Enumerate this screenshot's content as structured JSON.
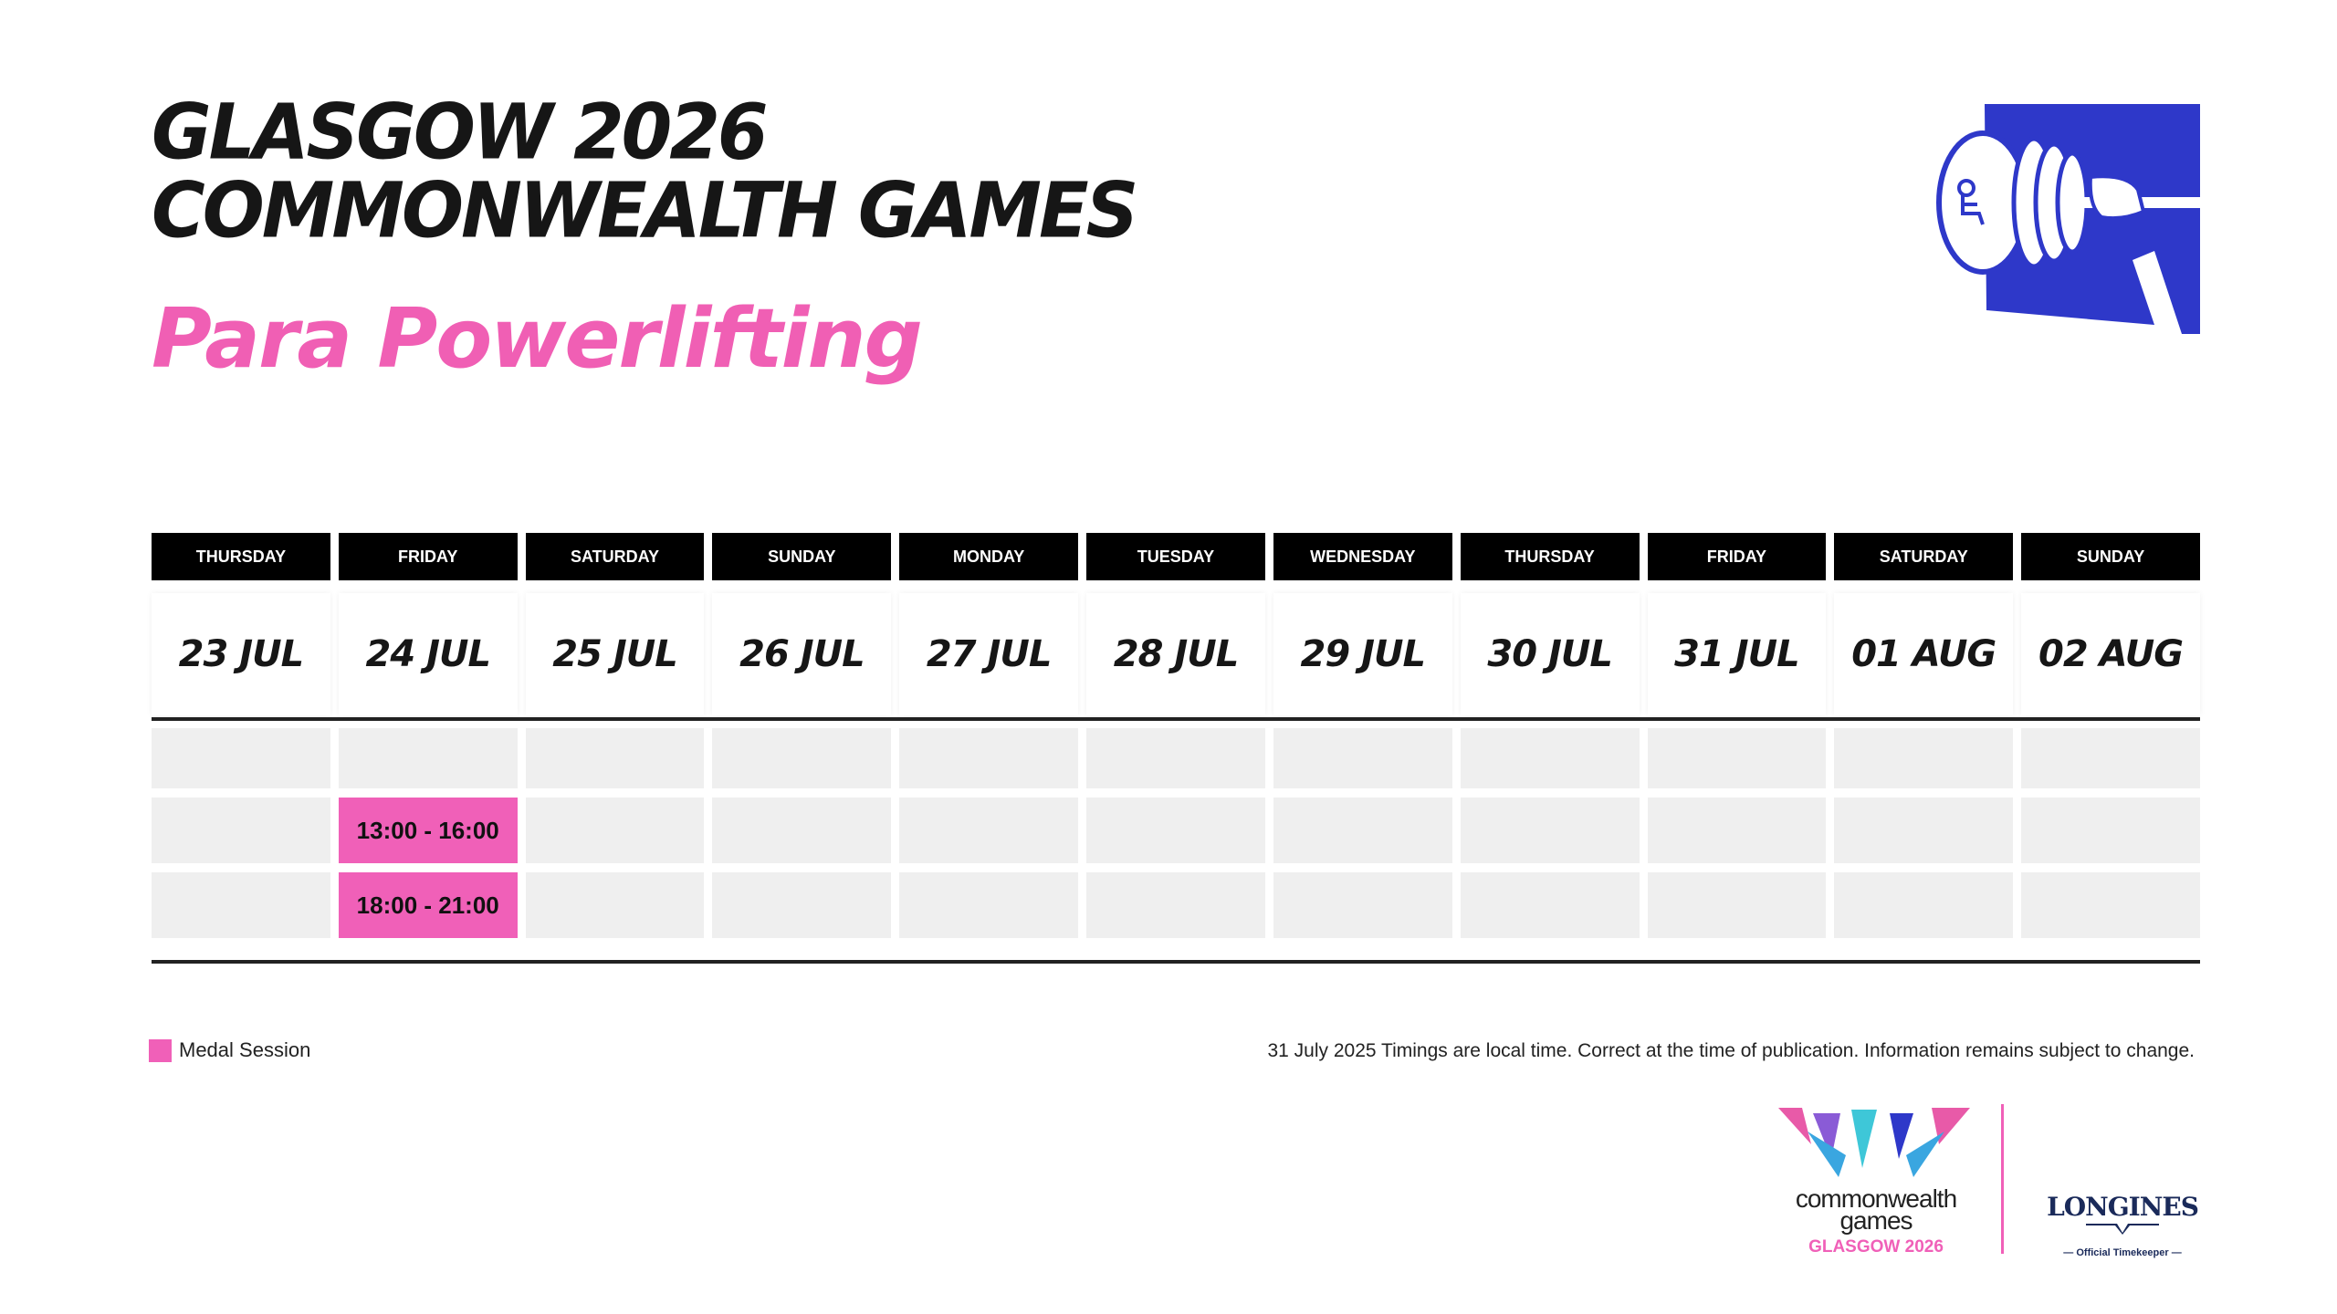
{
  "header": {
    "title_line1": "GLASGOW 2026",
    "title_line2": "COMMONWEALTH GAMES",
    "sport": "Para Powerlifting"
  },
  "days": [
    {
      "weekday": "THURSDAY",
      "date": "23 JUL"
    },
    {
      "weekday": "FRIDAY",
      "date": "24 JUL"
    },
    {
      "weekday": "SATURDAY",
      "date": "25 JUL"
    },
    {
      "weekday": "SUNDAY",
      "date": "26 JUL"
    },
    {
      "weekday": "MONDAY",
      "date": "27 JUL"
    },
    {
      "weekday": "TUESDAY",
      "date": "28 JUL"
    },
    {
      "weekday": "WEDNESDAY",
      "date": "29 JUL"
    },
    {
      "weekday": "THURSDAY",
      "date": "30 JUL"
    },
    {
      "weekday": "FRIDAY",
      "date": "31 JUL"
    },
    {
      "weekday": "SATURDAY",
      "date": "01 AUG"
    },
    {
      "weekday": "SUNDAY",
      "date": "02 AUG"
    }
  ],
  "sessions": [
    {
      "day_index": 1,
      "slot": 1,
      "time": "13:00 - 16:00",
      "medal": true
    },
    {
      "day_index": 1,
      "slot": 2,
      "time": "18:00 - 21:00",
      "medal": true
    }
  ],
  "legend": {
    "label": "Medal Session",
    "color": "#f060b8"
  },
  "footnote": "31 July 2025  Timings are local time. Correct at the time of publication. Information remains subject to change.",
  "footer": {
    "cwg_line1": "commonwealth",
    "cwg_line2": "games",
    "cwg_city": "GLASGOW 2026",
    "sponsor": "LONGINES",
    "sponsor_tag": "— Official Timekeeper —"
  },
  "icons": {
    "pictogram": "para-powerlifting-pictogram",
    "logo": "commonwealth-games-logo",
    "sponsor": "longines-logo"
  }
}
